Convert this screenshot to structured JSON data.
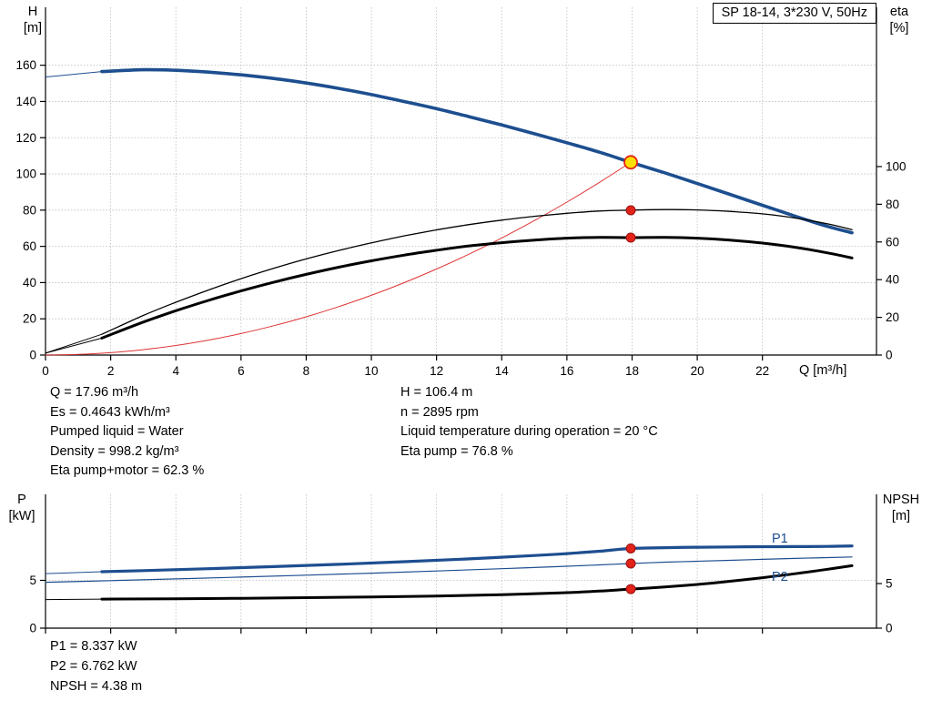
{
  "title_box": "SP 18-14, 3*230 V, 50Hz",
  "axis_titles": {
    "h": [
      "H",
      "[m]"
    ],
    "eta": [
      "eta",
      "[%]"
    ],
    "q": "Q [m³/h]",
    "p": [
      "P",
      "[kW]"
    ],
    "npsh": [
      "NPSH",
      "[m]"
    ]
  },
  "curve_labels": {
    "p1": "P1",
    "p2": "P2"
  },
  "operating_point_info": {
    "left": [
      "Q = 17.96 m³/h",
      "Es = 0.4643 kWh/m³",
      "Pumped liquid = Water",
      "Density = 998.2 kg/m³",
      "Eta pump+motor = 62.3 %"
    ],
    "right": [
      "H = 106.4 m",
      "n = 2895 rpm",
      "Liquid temperature during operation = 20 °C",
      "Eta pump = 76.8 %"
    ]
  },
  "power_info": [
    "P1 = 8.337 kW",
    "P2 = 6.762 kW",
    "NPSH = 4.38 m"
  ],
  "colors": {
    "curve_blue": "#1d4e8f",
    "curve_black": "#000000",
    "curve_red": "#dd3333",
    "marker_red": "#e2231a",
    "marker_yellow": "#ffdf00",
    "grid": "#bdbdbd"
  },
  "chart_data": [
    {
      "type": "line",
      "title": "SP 18-14, 3*230 V, 50Hz",
      "x_axis": {
        "label": "Q [m³/h]",
        "min": 0,
        "max": 25.5,
        "ticks": [
          0,
          2,
          4,
          6,
          8,
          10,
          12,
          14,
          16,
          18,
          20,
          22
        ]
      },
      "y_left": {
        "label": "H [m]",
        "min": 0,
        "max": 192,
        "ticks": [
          0,
          20,
          40,
          60,
          80,
          100,
          120,
          140,
          160
        ]
      },
      "y_right": {
        "label": "eta [%]",
        "min": 0,
        "max": 184.5,
        "ticks": [
          0,
          20,
          40,
          60,
          80,
          100
        ]
      },
      "duty_point": {
        "q": 17.96,
        "h": 106.4,
        "eta_pump": 76.8,
        "eta_pump_motor": 62.3
      },
      "series": [
        {
          "name": "head-curve",
          "axis": "left",
          "color": "#1d4e8f",
          "width": 3.6,
          "lead_in": [
            [
              0,
              153.5
            ],
            [
              1.73,
              156.5
            ]
          ],
          "points": [
            [
              1.73,
              156.5
            ],
            [
              3,
              157.5
            ],
            [
              4,
              157.2
            ],
            [
              5,
              156.2
            ],
            [
              6,
              154.7
            ],
            [
              7,
              152.7
            ],
            [
              8,
              150.2
            ],
            [
              9,
              147.2
            ],
            [
              10,
              143.8
            ],
            [
              11,
              140
            ],
            [
              12,
              136
            ],
            [
              13,
              131.6
            ],
            [
              14,
              127
            ],
            [
              15,
              122.2
            ],
            [
              16,
              117.2
            ],
            [
              17,
              112
            ],
            [
              17.96,
              106.4
            ],
            [
              19,
              100.6
            ],
            [
              20,
              94.7
            ],
            [
              21,
              88.7
            ],
            [
              22,
              82.7
            ],
            [
              23,
              76.7
            ],
            [
              24,
              71
            ],
            [
              24.75,
              67.5
            ]
          ]
        },
        {
          "name": "system-curve",
          "axis": "left",
          "color": "#dd3333",
          "width": 1,
          "points": [
            [
              0,
              0
            ],
            [
              1,
              0.33
            ],
            [
              2,
              1.32
            ],
            [
              3,
              2.97
            ],
            [
              4,
              5.28
            ],
            [
              5,
              8.25
            ],
            [
              6,
              11.88
            ],
            [
              7,
              16.17
            ],
            [
              8,
              21.11
            ],
            [
              9,
              26.72
            ],
            [
              10,
              32.99
            ],
            [
              11,
              39.92
            ],
            [
              12,
              47.5
            ],
            [
              13,
              55.75
            ],
            [
              14,
              64.66
            ],
            [
              15,
              74.23
            ],
            [
              16,
              84.45
            ],
            [
              17,
              95.34
            ],
            [
              17.96,
              106.4
            ]
          ]
        },
        {
          "name": "eta-pump-curve",
          "axis": "right",
          "color": "#000000",
          "width": 1.3,
          "lead_in": [
            [
              0,
              1
            ],
            [
              1.73,
              11
            ]
          ],
          "points": [
            [
              1.73,
              11
            ],
            [
              3,
              21
            ],
            [
              4,
              28
            ],
            [
              5,
              34.5
            ],
            [
              6,
              40.5
            ],
            [
              7,
              46
            ],
            [
              8,
              51
            ],
            [
              9,
              55.5
            ],
            [
              10,
              59.5
            ],
            [
              11,
              63.2
            ],
            [
              12,
              66.4
            ],
            [
              13,
              69.2
            ],
            [
              14,
              71.6
            ],
            [
              15,
              73.6
            ],
            [
              16,
              75.2
            ],
            [
              17,
              76.4
            ],
            [
              17.96,
              76.9
            ],
            [
              19,
              77.2
            ],
            [
              20,
              77
            ],
            [
              21,
              76.2
            ],
            [
              22,
              74.9
            ],
            [
              23,
              72.7
            ],
            [
              24,
              69.6
            ],
            [
              24.75,
              66.5
            ]
          ]
        },
        {
          "name": "eta-pump-motor-curve",
          "axis": "right",
          "color": "#000000",
          "width": 3,
          "lead_in": [
            [
              0,
              1
            ],
            [
              1.73,
              9
            ]
          ],
          "points": [
            [
              1.73,
              9
            ],
            [
              3,
              17.5
            ],
            [
              4,
              23.5
            ],
            [
              5,
              29
            ],
            [
              6,
              34
            ],
            [
              7,
              38.6
            ],
            [
              8,
              42.8
            ],
            [
              9,
              46.6
            ],
            [
              10,
              50
            ],
            [
              11,
              53
            ],
            [
              12,
              55.6
            ],
            [
              13,
              57.9
            ],
            [
              14,
              59.6
            ],
            [
              15,
              61
            ],
            [
              16,
              62
            ],
            [
              17,
              62.4
            ],
            [
              17.96,
              62.3
            ],
            [
              19,
              62.4
            ],
            [
              20,
              62
            ],
            [
              21,
              61
            ],
            [
              22,
              59.4
            ],
            [
              23,
              57.2
            ],
            [
              24,
              54.2
            ],
            [
              24.75,
              51.5
            ]
          ]
        }
      ],
      "markers": [
        {
          "name": "duty-point",
          "x": 17.96,
          "y": 106.4,
          "axis": "left",
          "r": 7,
          "fill": "#ffdf00",
          "stroke": "#e2231a",
          "sw": 1.8
        },
        {
          "name": "eta-pump-point",
          "x": 17.96,
          "y": 76.8,
          "axis": "right",
          "r": 5,
          "fill": "#e2231a",
          "stroke": "#991111",
          "sw": 1
        },
        {
          "name": "eta-pump-motor-point",
          "x": 17.96,
          "y": 62.3,
          "axis": "right",
          "r": 5,
          "fill": "#e2231a",
          "stroke": "#991111",
          "sw": 1
        }
      ]
    },
    {
      "type": "line",
      "title": "",
      "x_axis": {
        "label": "",
        "min": 0,
        "max": 25.5,
        "ticks": [
          0,
          2,
          4,
          6,
          8,
          10,
          12,
          14,
          16,
          18,
          20,
          22
        ]
      },
      "y_left": {
        "label": "P [kW]",
        "min": 0,
        "max": 14,
        "ticks": [
          0,
          5
        ]
      },
      "y_right": {
        "label": "NPSH [m]",
        "min": 0,
        "max": 15,
        "ticks": [
          0,
          5
        ]
      },
      "duty_point": {
        "q": 17.96,
        "p1": 8.337,
        "p2": 6.762,
        "npsh": 4.38
      },
      "series": [
        {
          "name": "p1-curve",
          "axis": "left",
          "color": "#1d4e8f",
          "width": 3.2,
          "lead_in": [
            [
              0,
              5.7
            ],
            [
              1.73,
              5.9
            ]
          ],
          "points": [
            [
              1.73,
              5.9
            ],
            [
              3,
              6.02
            ],
            [
              5,
              6.22
            ],
            [
              7,
              6.44
            ],
            [
              9,
              6.68
            ],
            [
              11,
              6.95
            ],
            [
              13,
              7.25
            ],
            [
              15,
              7.6
            ],
            [
              16,
              7.8
            ],
            [
              17,
              8.05
            ],
            [
              17.96,
              8.337
            ],
            [
              19,
              8.42
            ],
            [
              20,
              8.47
            ],
            [
              21,
              8.5
            ],
            [
              22,
              8.52
            ],
            [
              23,
              8.53
            ],
            [
              24,
              8.55
            ],
            [
              24.75,
              8.6
            ]
          ]
        },
        {
          "name": "p2-curve",
          "axis": "left",
          "color": "#1d4e8f",
          "width": 1.2,
          "points": [
            [
              0,
              4.8
            ],
            [
              2,
              4.97
            ],
            [
              4,
              5.15
            ],
            [
              6,
              5.34
            ],
            [
              8,
              5.54
            ],
            [
              10,
              5.75
            ],
            [
              12,
              5.98
            ],
            [
              14,
              6.22
            ],
            [
              16,
              6.48
            ],
            [
              17,
              6.62
            ],
            [
              17.96,
              6.762
            ],
            [
              19,
              6.9
            ],
            [
              20,
              7
            ],
            [
              21,
              7.1
            ],
            [
              22,
              7.2
            ],
            [
              23,
              7.3
            ],
            [
              24,
              7.38
            ],
            [
              24.75,
              7.45
            ]
          ]
        },
        {
          "name": "npsh-curve",
          "axis": "right",
          "color": "#000000",
          "width": 3,
          "lead_in": [
            [
              0,
              3.2
            ],
            [
              1.73,
              3.25
            ]
          ],
          "points": [
            [
              1.73,
              3.25
            ],
            [
              4,
              3.3
            ],
            [
              6,
              3.35
            ],
            [
              8,
              3.42
            ],
            [
              10,
              3.5
            ],
            [
              12,
              3.6
            ],
            [
              14,
              3.75
            ],
            [
              16,
              3.98
            ],
            [
              17,
              4.15
            ],
            [
              17.96,
              4.38
            ],
            [
              19,
              4.62
            ],
            [
              20,
              4.9
            ],
            [
              21,
              5.25
            ],
            [
              22,
              5.65
            ],
            [
              23,
              6.1
            ],
            [
              24,
              6.6
            ],
            [
              24.75,
              7
            ]
          ]
        }
      ],
      "markers": [
        {
          "name": "p1-point",
          "x": 17.96,
          "y": 8.337,
          "axis": "left",
          "r": 5,
          "fill": "#e2231a",
          "stroke": "#991111",
          "sw": 1
        },
        {
          "name": "p2-point",
          "x": 17.96,
          "y": 6.762,
          "axis": "left",
          "r": 5,
          "fill": "#e2231a",
          "stroke": "#991111",
          "sw": 1
        },
        {
          "name": "npsh-point",
          "x": 17.96,
          "y": 4.38,
          "axis": "right",
          "r": 5,
          "fill": "#e2231a",
          "stroke": "#991111",
          "sw": 1
        }
      ]
    }
  ]
}
